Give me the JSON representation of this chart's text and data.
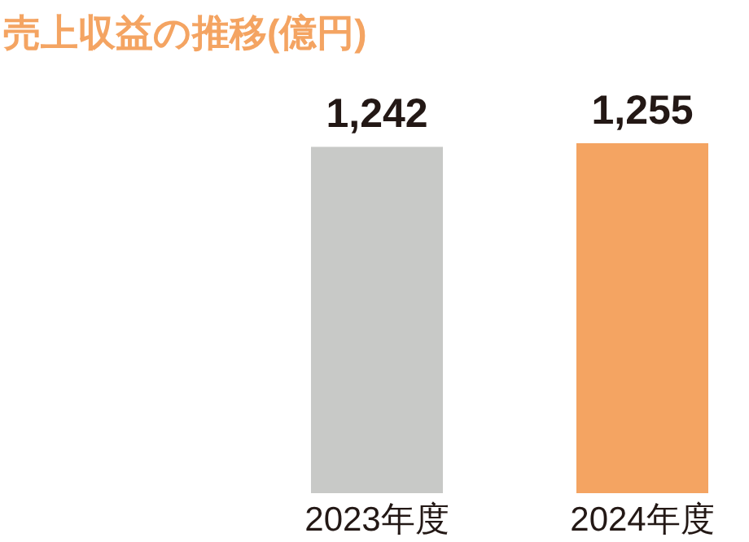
{
  "chart_data": {
    "type": "bar",
    "title": "売上収益の推移(億円)",
    "categories": [
      "2023年度",
      "2024年度"
    ],
    "values": [
      1242,
      1255
    ],
    "colors": [
      "#c8c9c7",
      "#f4a462"
    ],
    "value_labels": [
      "1,242",
      "1,255"
    ]
  }
}
